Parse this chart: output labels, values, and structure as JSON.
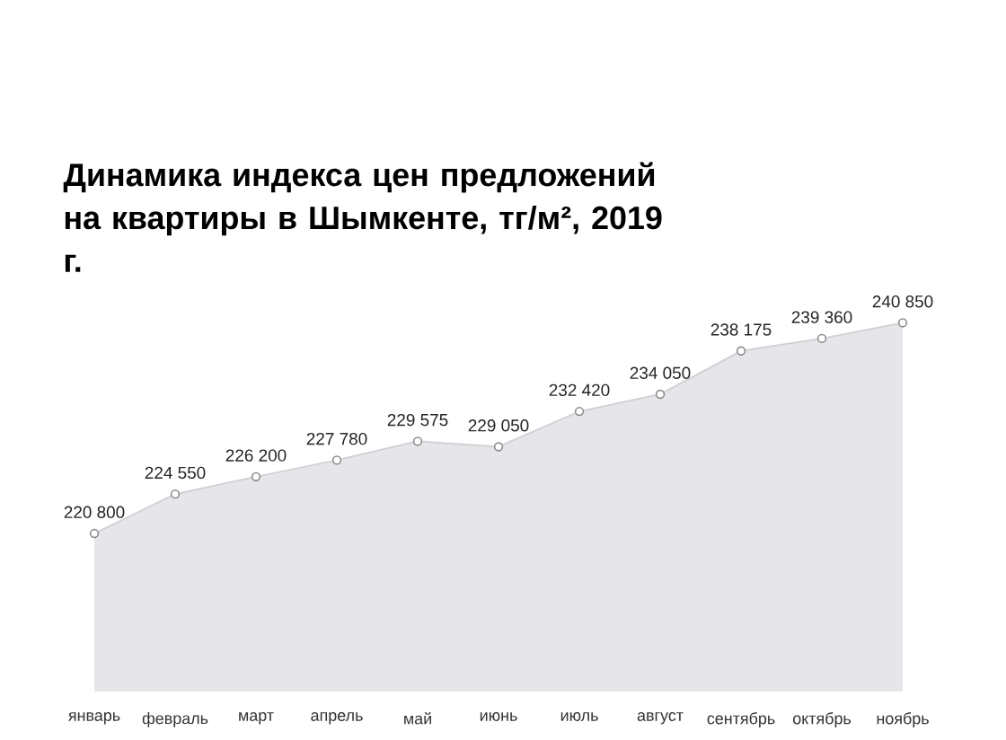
{
  "chart_data": {
    "type": "area",
    "title": "Динамика индекса цен предложений на квартиры в Шымкенте, тг/м², 2019 г.",
    "categories": [
      "январь",
      "февраль",
      "март",
      "апрель",
      "май",
      "июнь",
      "июль",
      "август",
      "сентябрь",
      "октябрь",
      "ноябрь"
    ],
    "values": [
      220800,
      224550,
      226200,
      227780,
      229575,
      229050,
      232420,
      234050,
      238175,
      239360,
      240850
    ],
    "value_labels": [
      "220 800",
      "224 550",
      "226 200",
      "227 780",
      "229 575",
      "229 050",
      "232 420",
      "234 050",
      "238 175",
      "239 360",
      "240 850"
    ],
    "color": "#e6e6ea",
    "tick_labels": "x",
    "marker": "circle"
  }
}
